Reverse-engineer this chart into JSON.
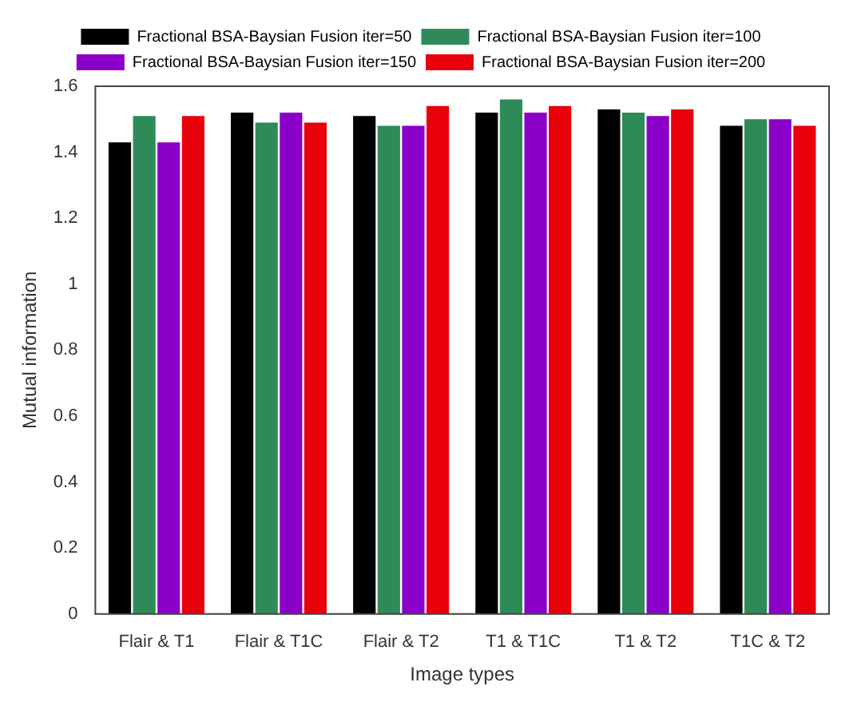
{
  "chart_data": {
    "type": "bar",
    "xlabel": "Image types",
    "ylabel": "Mutual information",
    "categories": [
      "Flair & T1",
      "Flair & T1C",
      "Flair & T2",
      "T1 & T1C",
      "T1 & T2",
      "T1C & T2"
    ],
    "series": [
      {
        "name": "Fractional BSA-Baysian Fusion iter=50",
        "color": "#000000",
        "values": [
          1.43,
          1.52,
          1.51,
          1.52,
          1.53,
          1.48
        ]
      },
      {
        "name": "Fractional BSA-Baysian Fusion iter=100",
        "color": "#2e8b57",
        "values": [
          1.51,
          1.49,
          1.48,
          1.56,
          1.52,
          1.5
        ]
      },
      {
        "name": "Fractional BSA-Baysian Fusion iter=150",
        "color": "#8b00c8",
        "values": [
          1.43,
          1.52,
          1.48,
          1.52,
          1.51,
          1.5
        ]
      },
      {
        "name": "Fractional BSA-Baysian Fusion iter=200",
        "color": "#e8000b",
        "values": [
          1.51,
          1.49,
          1.54,
          1.54,
          1.53,
          1.48
        ]
      }
    ],
    "ylim": [
      0,
      1.6
    ],
    "yticks": [
      0,
      0.2,
      0.4,
      0.6,
      0.8,
      1,
      1.2,
      1.4,
      1.6
    ],
    "grid": false,
    "legend": "top"
  }
}
